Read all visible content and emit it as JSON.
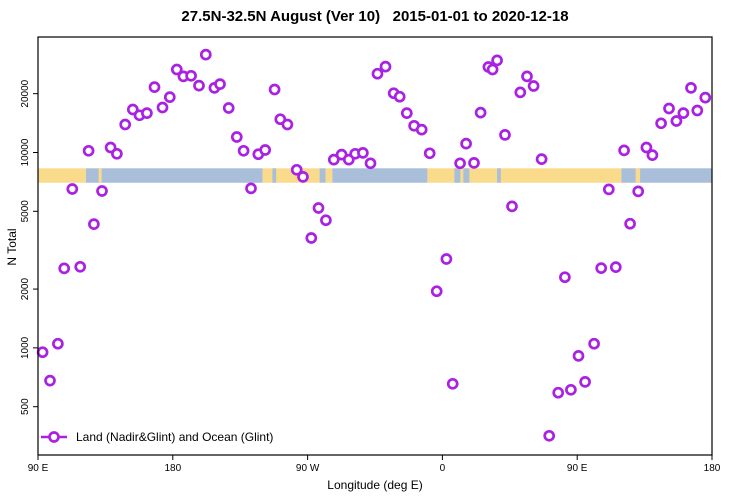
{
  "title": "27.5N-32.5N August (Ver 10)   2015-01-01 to 2020-12-18",
  "chart_data": {
    "type": "scatter",
    "title": "27.5N-32.5N August (Ver 10)   2015-01-01 to 2020-12-18",
    "xlabel": "Longitude (deg E)",
    "ylabel": "N Total",
    "x_axis": {
      "note": "running longitude, deg E from 90E wrapping eastward to 180 (90..540)",
      "range": [
        90,
        540
      ],
      "ticks": [
        {
          "deg": 90,
          "label": "90 E"
        },
        {
          "deg": 180,
          "label": "180"
        },
        {
          "deg": 270,
          "label": "90 W"
        },
        {
          "deg": 360,
          "label": "0"
        },
        {
          "deg": 450,
          "label": "90 E"
        },
        {
          "deg": 540,
          "label": "180"
        }
      ]
    },
    "y_axis": {
      "scale": "log10",
      "range": [
        283,
        39000
      ],
      "ticks": [
        {
          "n": 500,
          "label": "500"
        },
        {
          "n": 1000,
          "label": "1000"
        },
        {
          "n": 2000,
          "label": "2000"
        },
        {
          "n": 5000,
          "label": "5000"
        },
        {
          "n": 10000,
          "label": "10000"
        },
        {
          "n": 20000,
          "label": "20000"
        }
      ],
      "grid": false
    },
    "legend": {
      "label": "Land (Nadir&Glint) and Ocean (Glint)",
      "marker": "open-circle-on-line",
      "position": "bottom-left"
    },
    "colors": {
      "point": "#A922E4",
      "land": "#FADB8C",
      "ocean": "#A9BED8",
      "axis": "#000000"
    },
    "map_band": {
      "description": "land/ocean strip for the 27.5N-32.5N latitude band",
      "n_range": [
        7000,
        8300
      ],
      "segments": [
        {
          "type": "land",
          "from": 90,
          "to": 122
        },
        {
          "type": "ocean",
          "from": 122,
          "to": 240
        },
        {
          "type": "land",
          "from": 130.5,
          "to": 132.5
        },
        {
          "type": "land",
          "from": 240,
          "to": 278
        },
        {
          "type": "ocean",
          "from": 246.5,
          "to": 249
        },
        {
          "type": "ocean",
          "from": 278,
          "to": 282
        },
        {
          "type": "land",
          "from": 282,
          "to": 286.5
        },
        {
          "type": "ocean",
          "from": 286.5,
          "to": 350
        },
        {
          "type": "land",
          "from": 350,
          "to": 479.5
        },
        {
          "type": "ocean",
          "from": 368,
          "to": 372
        },
        {
          "type": "ocean",
          "from": 374,
          "to": 378
        },
        {
          "type": "ocean",
          "from": 396.5,
          "to": 399
        },
        {
          "type": "ocean",
          "from": 479.5,
          "to": 540
        },
        {
          "type": "land",
          "from": 489,
          "to": 492
        }
      ]
    },
    "points": [
      [
        93.1,
        950
      ],
      [
        98,
        680
      ],
      [
        103.3,
        1050
      ],
      [
        107.5,
        2550
      ],
      [
        112.9,
        6500
      ],
      [
        118.2,
        2600
      ],
      [
        123.8,
        10200
      ],
      [
        127.3,
        4300
      ],
      [
        132.7,
        6350
      ],
      [
        138.5,
        10600
      ],
      [
        142.7,
        9850
      ],
      [
        148.2,
        13900
      ],
      [
        153.3,
        16600
      ],
      [
        157.8,
        15500
      ],
      [
        162.7,
        15900
      ],
      [
        167.8,
        21600
      ],
      [
        173.1,
        17000
      ],
      [
        178,
        19200
      ],
      [
        182.7,
        26600
      ],
      [
        187.1,
        24500
      ],
      [
        192.2,
        24700
      ],
      [
        197.5,
        22000
      ],
      [
        202,
        31700
      ],
      [
        207.8,
        21400
      ],
      [
        211.5,
        22400
      ],
      [
        217.3,
        16900
      ],
      [
        222.7,
        12000
      ],
      [
        227.3,
        10200
      ],
      [
        232.2,
        6550
      ],
      [
        237.1,
        9800
      ],
      [
        241.7,
        10300
      ],
      [
        248,
        21000
      ],
      [
        251.8,
        14800
      ],
      [
        256.5,
        13900
      ],
      [
        262.7,
        8150
      ],
      [
        266.9,
        7500
      ],
      [
        272.5,
        3650
      ],
      [
        277.3,
        5200
      ],
      [
        282.2,
        4500
      ],
      [
        287.5,
        9200
      ],
      [
        292.7,
        9750
      ],
      [
        297.5,
        9200
      ],
      [
        301.8,
        9850
      ],
      [
        306.9,
        9950
      ],
      [
        312,
        8800
      ],
      [
        316.7,
        25300
      ],
      [
        322,
        27500
      ],
      [
        327.5,
        20100
      ],
      [
        331.5,
        19300
      ],
      [
        336.2,
        15900
      ],
      [
        341.1,
        13700
      ],
      [
        346.2,
        13100
      ],
      [
        351.5,
        9900
      ],
      [
        356.2,
        1950
      ],
      [
        362.7,
        2850
      ],
      [
        366.9,
        655
      ],
      [
        371.8,
        8800
      ],
      [
        375.8,
        11100
      ],
      [
        381.1,
        8850
      ],
      [
        385.5,
        16000
      ],
      [
        390.7,
        27400
      ],
      [
        393.5,
        26600
      ],
      [
        396.5,
        29600
      ],
      [
        401.8,
        12300
      ],
      [
        406.5,
        5300
      ],
      [
        412,
        20300
      ],
      [
        416.5,
        24500
      ],
      [
        420.9,
        21900
      ],
      [
        426.2,
        9250
      ],
      [
        431.3,
        355
      ],
      [
        437.3,
        590
      ],
      [
        441.8,
        2300
      ],
      [
        445.8,
        610
      ],
      [
        450.9,
        910
      ],
      [
        455.3,
        670
      ],
      [
        461.3,
        1050
      ],
      [
        466,
        2560
      ],
      [
        471.1,
        6470
      ],
      [
        475.8,
        2590
      ],
      [
        481.3,
        10250
      ],
      [
        485.3,
        4320
      ],
      [
        490.7,
        6320
      ],
      [
        496.2,
        10600
      ],
      [
        500.2,
        9700
      ],
      [
        506,
        14100
      ],
      [
        511.3,
        16800
      ],
      [
        516.2,
        14500
      ],
      [
        520.9,
        15900
      ],
      [
        526,
        21400
      ],
      [
        530.2,
        16400
      ],
      [
        535.5,
        19100
      ]
    ]
  }
}
